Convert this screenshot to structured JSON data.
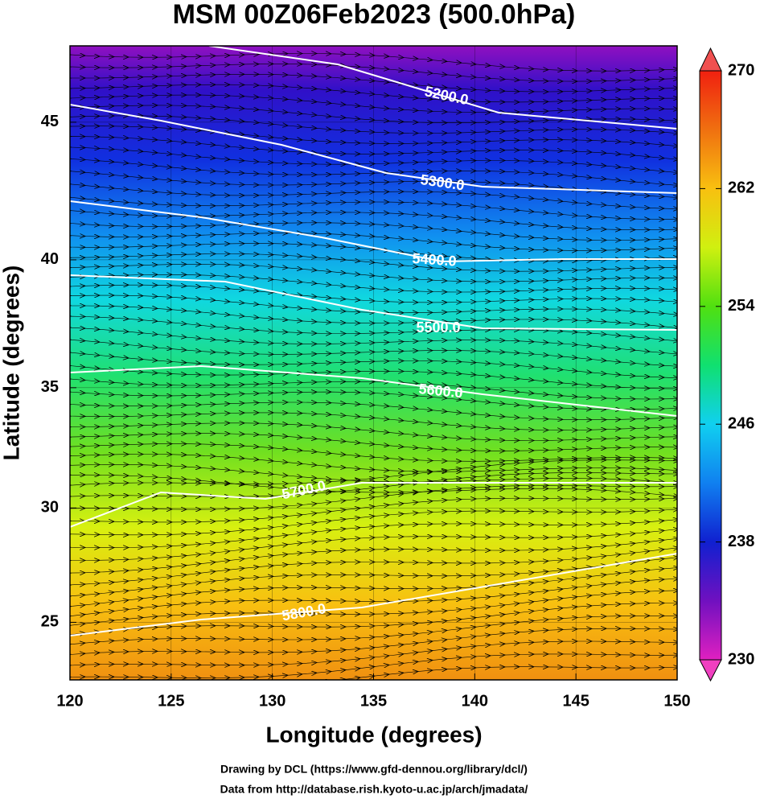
{
  "chart_data": {
    "type": "map",
    "title": "MSM 00Z06Feb2023 (500.0hPa)",
    "x_label": "Longitude (degrees)",
    "y_label": "Latitude  (degrees)",
    "projection": "mercator",
    "xlim": [
      120,
      150
    ],
    "ylim": [
      22.4,
      47.6
    ],
    "xticks": [
      120,
      125,
      130,
      135,
      140,
      145,
      150
    ],
    "yticks": [
      25,
      30,
      35,
      40,
      45
    ],
    "grid": true,
    "contour_labels": [
      "5200.0",
      "5300.0",
      "5400.0",
      "5500.0",
      "5600.0",
      "5700.0",
      "5800.0"
    ],
    "colorbar": {
      "lim": [
        230,
        270
      ],
      "ticks": [
        230,
        238,
        246,
        254,
        262,
        270
      ],
      "colors": [
        "#e020c0",
        "#7010c0",
        "#1020d0",
        "#1080f0",
        "#10d0f0",
        "#10e070",
        "#50e010",
        "#d0f010",
        "#f8c010",
        "#f07010",
        "#f02010"
      ]
    },
    "credits": [
      "Drawing by DCL (https://www.gfd-dennou.org/library/dcl/)",
      "Data from http://database.rish.kyoto-u.ac.jp/arch/jmadata/"
    ]
  }
}
